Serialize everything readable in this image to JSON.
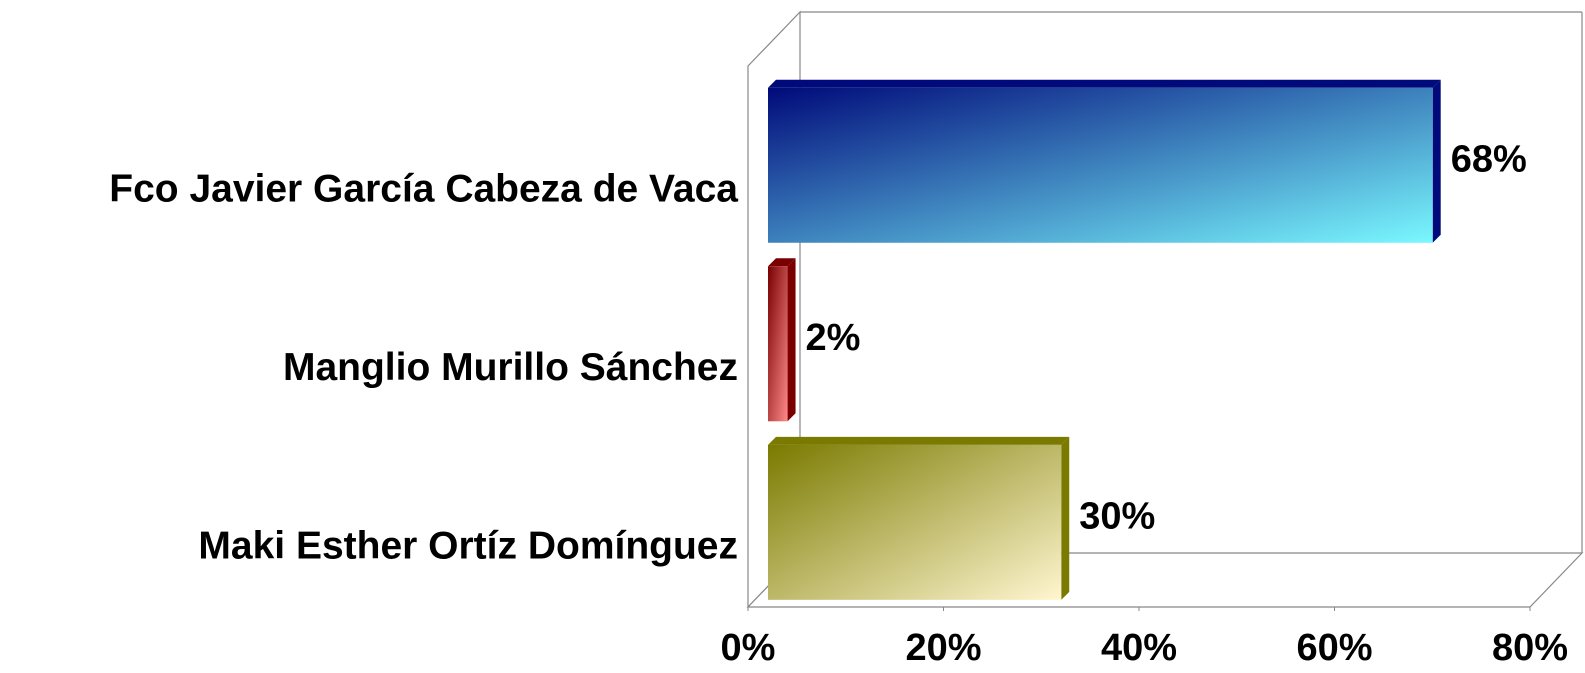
{
  "chart_data": {
    "type": "bar",
    "orientation": "horizontal",
    "categories": [
      "Fco Javier García Cabeza de Vaca",
      "Manglio Murillo Sánchez",
      "Maki Esther Ortíz Domínguez"
    ],
    "values": [
      68,
      2,
      30
    ],
    "value_labels": [
      "68%",
      "2%",
      "30%"
    ],
    "colors": [
      [
        "#000a7a",
        "#7af8ff"
      ],
      [
        "#7a0000",
        "#ff8a8a"
      ],
      [
        "#7a7a00",
        "#fff6d0"
      ]
    ],
    "xlim": [
      0,
      80
    ],
    "xticks": [
      {
        "value": 0,
        "label": "0%"
      },
      {
        "value": 20,
        "label": "20%"
      },
      {
        "value": 40,
        "label": "40%"
      },
      {
        "value": 60,
        "label": "60%"
      },
      {
        "value": 80,
        "label": "80%"
      }
    ]
  }
}
